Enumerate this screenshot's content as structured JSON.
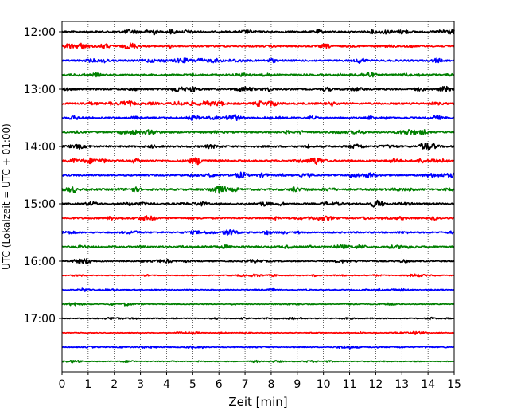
{
  "chart_data": {
    "type": "line",
    "subtype": "helicorder",
    "title": "",
    "xlabel": "Zeit  [min]",
    "ylabel": "UTC (Lokalzeit = UTC + 01:00)",
    "xlim": [
      0,
      15
    ],
    "x_ticks": [
      0,
      1,
      2,
      3,
      4,
      5,
      6,
      7,
      8,
      9,
      10,
      11,
      12,
      13,
      14,
      15
    ],
    "x_tick_labels": [
      "0",
      "1",
      "2",
      "3",
      "4",
      "5",
      "6",
      "7",
      "8",
      "9",
      "10",
      "11",
      "12",
      "13",
      "14",
      "15"
    ],
    "x_grid": "dotted vertical lines at every minute",
    "y_tick_labels": [
      "12:00",
      "13:00",
      "14:00",
      "15:00",
      "16:00",
      "17:00"
    ],
    "trace_color_cycle": [
      "#000000",
      "#ff0000",
      "#0000ff",
      "#008000"
    ],
    "series": [
      {
        "start_utc": "12:00",
        "color": "#000000",
        "amplitude": 0.7
      },
      {
        "start_utc": "12:15",
        "color": "#ff0000",
        "amplitude": 0.65
      },
      {
        "start_utc": "12:30",
        "color": "#0000ff",
        "amplitude": 0.7
      },
      {
        "start_utc": "12:45",
        "color": "#008000",
        "amplitude": 0.65
      },
      {
        "start_utc": "13:00",
        "color": "#000000",
        "amplitude": 0.65
      },
      {
        "start_utc": "13:15",
        "color": "#ff0000",
        "amplitude": 0.75
      },
      {
        "start_utc": "13:30",
        "color": "#0000ff",
        "amplitude": 0.65
      },
      {
        "start_utc": "13:45",
        "color": "#008000",
        "amplitude": 0.7
      },
      {
        "start_utc": "14:00",
        "color": "#000000",
        "amplitude": 0.7
      },
      {
        "start_utc": "14:15",
        "color": "#ff0000",
        "amplitude": 0.75
      },
      {
        "start_utc": "14:30",
        "color": "#0000ff",
        "amplitude": 0.65
      },
      {
        "start_utc": "14:45",
        "color": "#008000",
        "amplitude": 0.75
      },
      {
        "start_utc": "15:00",
        "color": "#000000",
        "amplitude": 0.65
      },
      {
        "start_utc": "15:15",
        "color": "#ff0000",
        "amplitude": 0.6
      },
      {
        "start_utc": "15:30",
        "color": "#0000ff",
        "amplitude": 0.6
      },
      {
        "start_utc": "15:45",
        "color": "#008000",
        "amplitude": 0.65
      },
      {
        "start_utc": "16:00",
        "color": "#000000",
        "amplitude": 0.5
      },
      {
        "start_utc": "16:15",
        "color": "#ff0000",
        "amplitude": 0.35
      },
      {
        "start_utc": "16:30",
        "color": "#0000ff",
        "amplitude": 0.35
      },
      {
        "start_utc": "16:45",
        "color": "#008000",
        "amplitude": 0.35
      },
      {
        "start_utc": "17:00",
        "color": "#000000",
        "amplitude": 0.35
      },
      {
        "start_utc": "17:15",
        "color": "#ff0000",
        "amplitude": 0.3
      },
      {
        "start_utc": "17:30",
        "color": "#0000ff",
        "amplitude": 0.35
      },
      {
        "start_utc": "17:45",
        "color": "#008000",
        "amplitude": 0.3
      }
    ]
  }
}
